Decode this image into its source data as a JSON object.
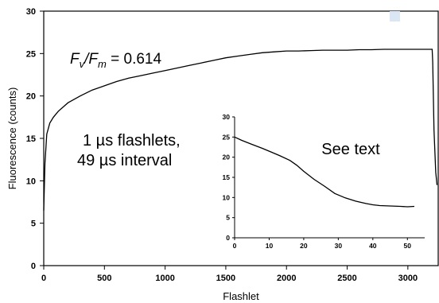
{
  "chart_data": [
    {
      "type": "line",
      "xlabel": "Flashlet",
      "ylabel": "Fluorescence (counts)",
      "xlim": [
        0,
        3250
      ],
      "ylim": [
        0,
        30
      ],
      "x_ticks": [
        "0",
        "500",
        "1000",
        "1500",
        "2000",
        "2500",
        "3000"
      ],
      "y_ticks": [
        "0",
        "5",
        "10",
        "15",
        "20",
        "25",
        "30"
      ],
      "annotation_fvfm": {
        "f1": "F",
        "sub1": "v",
        "slash": "/",
        "f2": "F",
        "sub2": "m",
        "value": " = 0.614"
      },
      "annotation_lines": [
        "1 µs flashlets,",
        "49 µs interval"
      ],
      "series": [
        {
          "x": [
            0,
            10,
            25,
            50,
            80,
            120,
            200,
            300,
            400,
            500,
            600,
            700,
            800,
            900,
            1000,
            1100,
            1200,
            1300,
            1400,
            1500,
            1600,
            1700,
            1800,
            1900,
            2000,
            2100,
            2200,
            2300,
            2400,
            2500,
            2600,
            2700,
            2800,
            2900,
            3000,
            3100,
            3200,
            3205,
            3215,
            3230,
            3240
          ],
          "y": [
            6.5,
            12.0,
            15.5,
            16.8,
            17.5,
            18.2,
            19.2,
            20.0,
            20.7,
            21.2,
            21.7,
            22.1,
            22.4,
            22.7,
            23.0,
            23.3,
            23.6,
            23.9,
            24.2,
            24.5,
            24.7,
            24.9,
            25.1,
            25.2,
            25.3,
            25.3,
            25.35,
            25.4,
            25.4,
            25.4,
            25.45,
            25.45,
            25.5,
            25.5,
            25.5,
            25.5,
            25.5,
            24.0,
            16.0,
            11.0,
            9.5
          ]
        }
      ]
    },
    {
      "type": "line",
      "xlim": [
        0,
        55
      ],
      "ylim": [
        0,
        30
      ],
      "x_ticks": [
        "0",
        "10",
        "20",
        "30",
        "40",
        "50"
      ],
      "y_ticks": [
        "0",
        "5",
        "10",
        "15",
        "20",
        "25",
        "30"
      ],
      "annotation": "See text",
      "series": [
        {
          "x": [
            0,
            2,
            5,
            8,
            10,
            13,
            16,
            18,
            20,
            23,
            26,
            29,
            32,
            35,
            38,
            40,
            42,
            45,
            48,
            50,
            52
          ],
          "y": [
            25.0,
            24.2,
            23.2,
            22.2,
            21.5,
            20.4,
            19.2,
            18.0,
            16.5,
            14.5,
            12.8,
            11.0,
            9.9,
            9.1,
            8.5,
            8.2,
            8.0,
            7.9,
            7.8,
            7.7,
            7.8
          ]
        }
      ]
    }
  ]
}
